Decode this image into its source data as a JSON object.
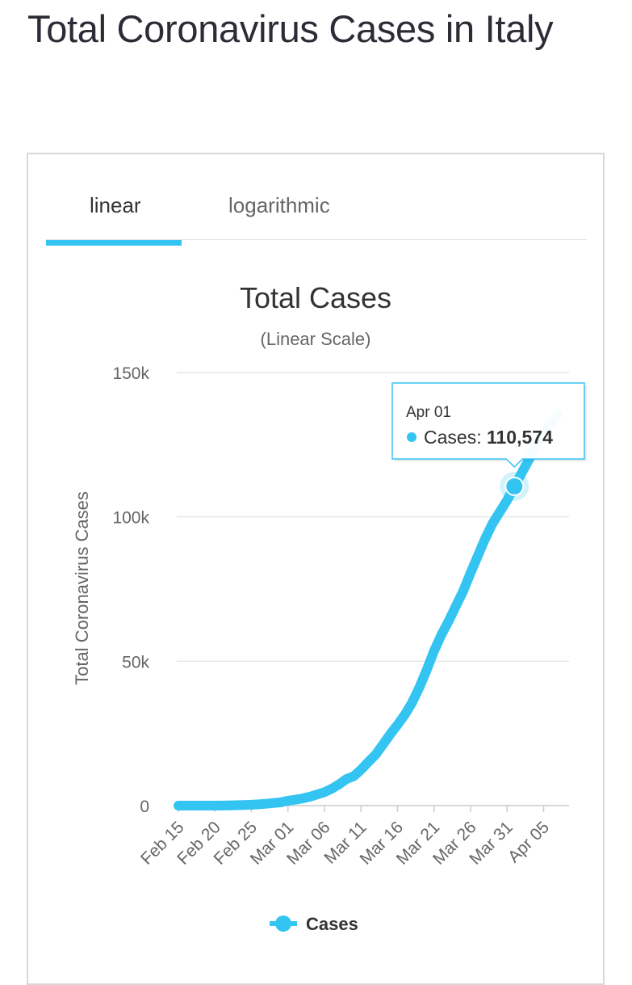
{
  "page": {
    "title": "Total Coronavirus Cases in Italy"
  },
  "tabs": [
    {
      "label": "linear",
      "active": true
    },
    {
      "label": "logarithmic",
      "active": false
    }
  ],
  "colors": {
    "accent": "#33c4f2",
    "text": "#333333"
  },
  "chart_data": {
    "type": "line",
    "title": "Total Cases",
    "subtitle": "(Linear Scale)",
    "ylabel": "Total Coronavirus Cases",
    "xlabel": "",
    "ylim": [
      0,
      150000
    ],
    "y_ticks": [
      0,
      50000,
      100000,
      150000
    ],
    "y_tick_labels": [
      "0",
      "50k",
      "100k",
      "150k"
    ],
    "x_tick_labels": [
      "Feb 15",
      "Feb 20",
      "Feb 25",
      "Mar 01",
      "Mar 06",
      "Mar 11",
      "Mar 16",
      "Mar 21",
      "Mar 26",
      "Mar 31",
      "Apr 05"
    ],
    "grid": true,
    "legend": {
      "position": "bottom",
      "entries": [
        "Cases"
      ]
    },
    "series": [
      {
        "name": "Cases",
        "x": [
          "Feb 15",
          "Feb 16",
          "Feb 17",
          "Feb 18",
          "Feb 19",
          "Feb 20",
          "Feb 21",
          "Feb 22",
          "Feb 23",
          "Feb 24",
          "Feb 25",
          "Feb 26",
          "Feb 27",
          "Feb 28",
          "Feb 29",
          "Mar 01",
          "Mar 02",
          "Mar 03",
          "Mar 04",
          "Mar 05",
          "Mar 06",
          "Mar 07",
          "Mar 08",
          "Mar 09",
          "Mar 10",
          "Mar 11",
          "Mar 12",
          "Mar 13",
          "Mar 14",
          "Mar 15",
          "Mar 16",
          "Mar 17",
          "Mar 18",
          "Mar 19",
          "Mar 20",
          "Mar 21",
          "Mar 22",
          "Mar 23",
          "Mar 24",
          "Mar 25",
          "Mar 26",
          "Mar 27",
          "Mar 28",
          "Mar 29",
          "Mar 30",
          "Mar 31",
          "Apr 01",
          "Apr 02",
          "Apr 03",
          "Apr 04",
          "Apr 05",
          "Apr 06",
          "Apr 07"
        ],
        "values": [
          3,
          3,
          3,
          3,
          3,
          3,
          20,
          79,
          150,
          227,
          320,
          445,
          650,
          888,
          1128,
          1694,
          2036,
          2502,
          3089,
          3858,
          4636,
          5883,
          7375,
          9172,
          10149,
          12462,
          15113,
          17660,
          21157,
          24747,
          27980,
          31506,
          35713,
          41035,
          47021,
          53578,
          59138,
          63927,
          69176,
          74386,
          80589,
          86498,
          92472,
          97689,
          101739,
          105792,
          110574,
          115242,
          119827,
          124632,
          128948,
          132547,
          135586
        ]
      }
    ],
    "tooltip": {
      "date": "Apr 01",
      "label": "Cases",
      "value_text": "110,574",
      "value": 110574
    }
  }
}
